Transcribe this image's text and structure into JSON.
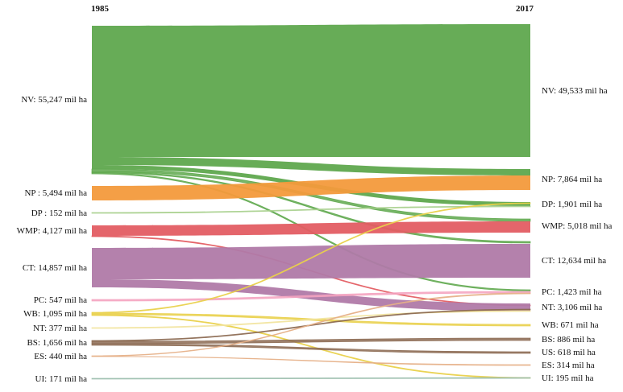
{
  "years": {
    "left": "1985",
    "right": "2017"
  },
  "colors": {
    "NV": "#5fa84e",
    "NP": "#f39a3c",
    "DP": "#a9d08e",
    "WMP": "#e35d63",
    "CT": "#b07aa8",
    "PC": "#f4a3c0",
    "WB": "#e9d04a",
    "NT": "#f2e4a0",
    "BS": "#8c6a52",
    "ES": "#e6b088",
    "UI": "#9cbfae",
    "US": "#8c6a52"
  },
  "nodes_1985": [
    {
      "id": "NV",
      "label": "NV: 55,247 mil ha",
      "value": 55247
    },
    {
      "id": "NP",
      "label": "NP : 5,494 mil ha",
      "value": 5494
    },
    {
      "id": "DP",
      "label": "DP : 152 mil ha",
      "value": 152
    },
    {
      "id": "WMP",
      "label": "WMP: 4,127 mil ha",
      "value": 4127
    },
    {
      "id": "CT",
      "label": "CT: 14,857 mil ha",
      "value": 14857
    },
    {
      "id": "PC",
      "label": "PC: 547 mil ha",
      "value": 547
    },
    {
      "id": "WB",
      "label": "WB: 1,095 mil ha",
      "value": 1095
    },
    {
      "id": "NT",
      "label": "NT: 377 mil ha",
      "value": 377
    },
    {
      "id": "BS",
      "label": "BS: 1,656 mil ha",
      "value": 1656
    },
    {
      "id": "ES",
      "label": "ES: 440 mil ha",
      "value": 440
    },
    {
      "id": "UI",
      "label": "UI: 171 mil ha",
      "value": 171
    }
  ],
  "nodes_2017": [
    {
      "id": "NV",
      "label": "NV: 49,533 mil ha",
      "value": 49533
    },
    {
      "id": "NP",
      "label": "NP: 7,864 mil ha",
      "value": 7864
    },
    {
      "id": "DP",
      "label": "DP: 1,901 mil ha",
      "value": 1901
    },
    {
      "id": "WMP",
      "label": "WMP: 5,018 mil ha",
      "value": 5018
    },
    {
      "id": "CT",
      "label": "CT: 12,634 mil ha",
      "value": 12634
    },
    {
      "id": "PC",
      "label": "PC: 1,423 mil ha",
      "value": 1423
    },
    {
      "id": "NT",
      "label": "NT: 3,106 mil ha",
      "value": 3106
    },
    {
      "id": "WB",
      "label": "WB: 671 mil ha",
      "value": 671
    },
    {
      "id": "BS",
      "label": "BS: 886 mil ha",
      "value": 886
    },
    {
      "id": "US",
      "label": "US: 618 mil ha",
      "value": 618
    },
    {
      "id": "ES",
      "label": "ES: 314 mil ha",
      "value": 314
    },
    {
      "id": "UI",
      "label": "UI: 195 mil ha",
      "value": 195
    }
  ]
}
